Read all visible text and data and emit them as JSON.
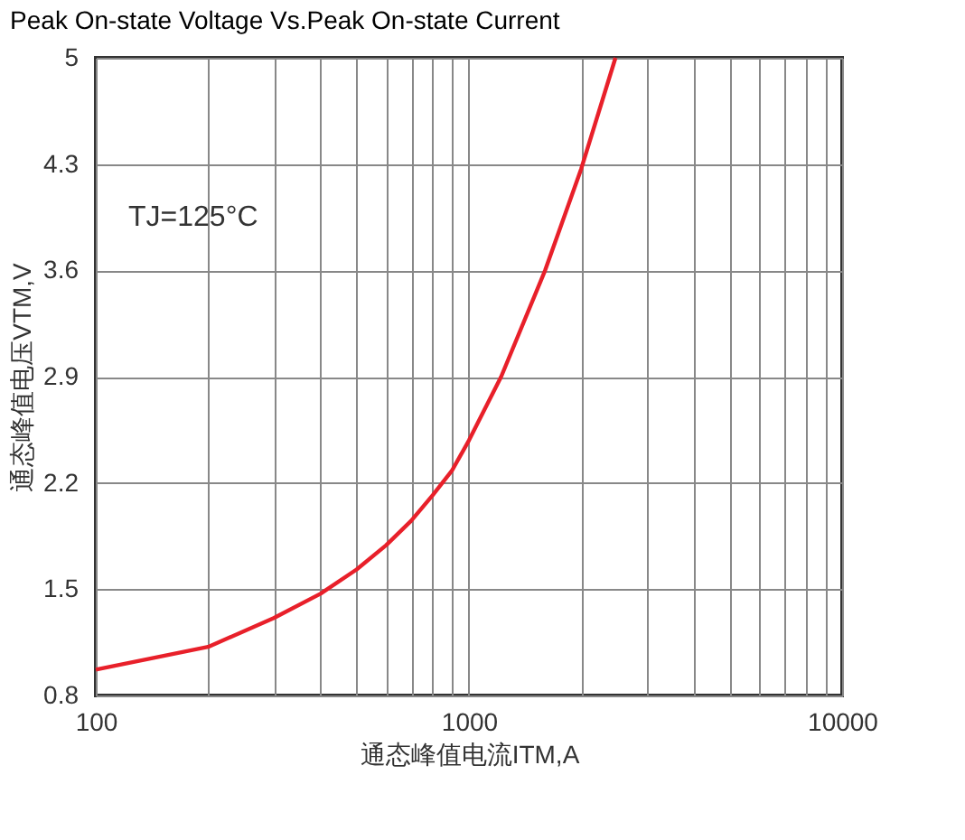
{
  "chart_data": {
    "type": "line",
    "title": "Peak On-state Voltage Vs.Peak On-state Current",
    "xlabel": "通态峰值电流ITM,A",
    "ylabel": "通态峰值电压VTM,V",
    "x": [
      100,
      200,
      300,
      400,
      500,
      600,
      700,
      800,
      900,
      1000,
      1220,
      1600,
      2000,
      2470
    ],
    "series": [
      {
        "color": "#e8202a",
        "values": [
          0.97,
          1.12,
          1.31,
          1.47,
          1.63,
          1.79,
          1.95,
          2.12,
          2.28,
          2.48,
          2.9,
          3.6,
          4.27,
          5.0
        ]
      }
    ],
    "log": "x",
    "xlim": [
      100,
      10000
    ],
    "xticks": [
      100,
      {
        "value": 200,
        "label": null
      },
      {
        "value": 300,
        "label": null
      },
      {
        "value": 400,
        "label": null
      },
      {
        "value": 500,
        "label": null
      },
      {
        "value": 600,
        "label": null
      },
      {
        "value": 700,
        "label": null
      },
      {
        "value": 800,
        "label": null
      },
      {
        "value": 900,
        "label": null
      },
      1000,
      {
        "value": 2000,
        "label": null
      },
      {
        "value": 3000,
        "label": null
      },
      {
        "value": 4000,
        "label": null
      },
      {
        "value": 5000,
        "label": null
      },
      {
        "value": 6000,
        "label": null
      },
      {
        "value": 7000,
        "label": null
      },
      {
        "value": 8000,
        "label": null
      },
      {
        "value": 9000,
        "label": null
      },
      10000
    ],
    "ylim": [
      0.8,
      5
    ],
    "yticks": [
      0.8,
      1.5,
      2.2,
      2.9,
      3.6,
      4.3,
      5
    ],
    "grid": true,
    "marker": "none",
    "line_style": "solid",
    "annotations": [
      "TJ=125°C"
    ]
  }
}
